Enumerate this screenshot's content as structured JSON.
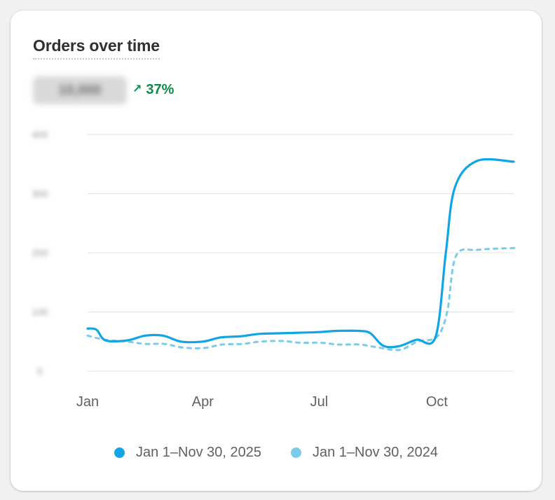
{
  "card": {
    "title": "Orders over time",
    "metric_value": "10,000",
    "delta_arrow": "↗",
    "delta_text": "37%"
  },
  "colors": {
    "current": "#12a5e6",
    "previous": "#7ccbea",
    "grid": "#e3e3e3",
    "delta": "#0d8a4a"
  },
  "chart_data": {
    "type": "line",
    "title": "Orders over time",
    "xlabel": "",
    "ylabel": "",
    "x_ticks": [
      "Jan",
      "Apr",
      "Jul",
      "Oct"
    ],
    "y_ticks": [
      "0",
      "100",
      "200",
      "300",
      "400"
    ],
    "ylim": [
      0,
      400
    ],
    "grid": true,
    "legend_position": "bottom",
    "series": [
      {
        "name": "Jan 1–Nov 30, 2025",
        "style": "solid",
        "color": "#12a5e6",
        "points": [
          [
            "2025-01-01",
            72
          ],
          [
            "2025-01-08",
            70
          ],
          [
            "2025-01-15",
            52
          ],
          [
            "2025-02-01",
            52
          ],
          [
            "2025-02-15",
            60
          ],
          [
            "2025-03-01",
            60
          ],
          [
            "2025-03-15",
            50
          ],
          [
            "2025-04-01",
            50
          ],
          [
            "2025-04-15",
            57
          ],
          [
            "2025-05-01",
            59
          ],
          [
            "2025-05-15",
            63
          ],
          [
            "2025-06-01",
            64
          ],
          [
            "2025-06-15",
            65
          ],
          [
            "2025-07-01",
            66
          ],
          [
            "2025-07-15",
            68
          ],
          [
            "2025-08-01",
            68
          ],
          [
            "2025-08-10",
            64
          ],
          [
            "2025-08-20",
            43
          ],
          [
            "2025-09-01",
            42
          ],
          [
            "2025-09-15",
            53
          ],
          [
            "2025-09-30",
            58
          ],
          [
            "2025-10-08",
            200
          ],
          [
            "2025-10-15",
            310
          ],
          [
            "2025-11-01",
            355
          ],
          [
            "2025-11-30",
            354
          ]
        ]
      },
      {
        "name": "Jan 1–Nov 30, 2024",
        "style": "dashed",
        "color": "#7ccbea",
        "points": [
          [
            "2024-01-01",
            60
          ],
          [
            "2024-01-15",
            53
          ],
          [
            "2024-02-01",
            50
          ],
          [
            "2024-02-15",
            46
          ],
          [
            "2024-03-01",
            46
          ],
          [
            "2024-03-15",
            40
          ],
          [
            "2024-04-01",
            39
          ],
          [
            "2024-04-15",
            45
          ],
          [
            "2024-05-01",
            46
          ],
          [
            "2024-05-15",
            50
          ],
          [
            "2024-06-01",
            51
          ],
          [
            "2024-06-15",
            48
          ],
          [
            "2024-07-01",
            48
          ],
          [
            "2024-07-15",
            45
          ],
          [
            "2024-08-01",
            45
          ],
          [
            "2024-08-15",
            40
          ],
          [
            "2024-09-01",
            36
          ],
          [
            "2024-09-15",
            50
          ],
          [
            "2024-09-30",
            58
          ],
          [
            "2024-10-08",
            100
          ],
          [
            "2024-10-15",
            195
          ],
          [
            "2024-11-01",
            205
          ],
          [
            "2024-11-30",
            208
          ]
        ]
      }
    ]
  },
  "legend": {
    "items": [
      {
        "label": "Jan 1–Nov 30, 2025",
        "color": "#12a5e6"
      },
      {
        "label": "Jan 1–Nov 30, 2024",
        "color": "#7ccbea"
      }
    ]
  }
}
